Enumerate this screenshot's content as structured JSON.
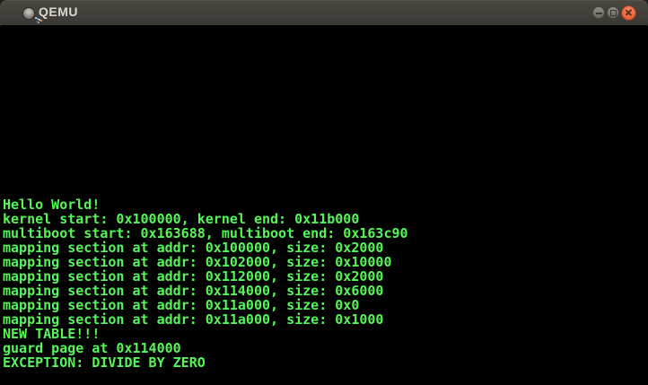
{
  "window": {
    "title": "QEMU",
    "controls": {
      "minimize_icon": "minus",
      "maximize_icon": "square-outline",
      "close_icon": "cross"
    },
    "titlebar_color": "#3f3d38",
    "close_button_color": "#ea6b42"
  },
  "console": {
    "background": "#000000",
    "text_color": "#55f757",
    "columns": 80,
    "rows": 25,
    "lines": [
      "Hello World!",
      "kernel start: 0x100000, kernel end: 0x11b000",
      "multiboot start: 0x163688, multiboot end: 0x163c90",
      "mapping section at addr: 0x100000, size: 0x2000",
      "mapping section at addr: 0x102000, size: 0x10000",
      "mapping section at addr: 0x112000, size: 0x2000",
      "mapping section at addr: 0x114000, size: 0x6000",
      "mapping section at addr: 0x11a000, size: 0x0",
      "mapping section at addr: 0x11a000, size: 0x1000",
      "NEW TABLE!!!",
      "guard page at 0x114000",
      "EXCEPTION: DIVIDE BY ZERO"
    ]
  }
}
